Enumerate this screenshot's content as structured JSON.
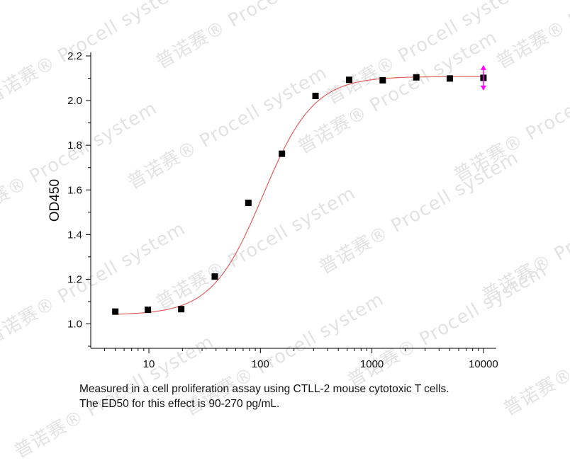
{
  "chart_data": {
    "type": "scatter",
    "title": "",
    "xlabel": "",
    "ylabel": "OD450",
    "x_scale": "log",
    "xlim": [
      4,
      12000
    ],
    "ylim": [
      0.97,
      2.2
    ],
    "x_ticks": [
      {
        "value": 10,
        "label": "10"
      },
      {
        "value": 100,
        "label": "100"
      },
      {
        "value": 1000,
        "label": "1000"
      },
      {
        "value": 10000,
        "label": "10000"
      }
    ],
    "y_ticks": [
      {
        "value": 1.0,
        "label": "1.0"
      },
      {
        "value": 1.2,
        "label": "1.2"
      },
      {
        "value": 1.4,
        "label": "1.4"
      },
      {
        "value": 1.6,
        "label": "1.6"
      },
      {
        "value": 1.8,
        "label": "1.8"
      },
      {
        "value": 2.0,
        "label": "2.0"
      },
      {
        "value": 2.2,
        "label": "2.2"
      }
    ],
    "series": [
      {
        "marker": "square",
        "color": "#000000",
        "points": [
          {
            "x": 5,
            "y": 1.055
          },
          {
            "x": 9.8,
            "y": 1.063
          },
          {
            "x": 19.5,
            "y": 1.066
          },
          {
            "x": 39,
            "y": 1.212
          },
          {
            "x": 78,
            "y": 1.542
          },
          {
            "x": 156,
            "y": 1.762
          },
          {
            "x": 312,
            "y": 2.021
          },
          {
            "x": 625,
            "y": 2.093
          },
          {
            "x": 1250,
            "y": 2.091
          },
          {
            "x": 2500,
            "y": 2.104
          },
          {
            "x": 5000,
            "y": 2.099
          },
          {
            "x": 10000,
            "y": 2.102
          }
        ]
      }
    ],
    "fit_curve": {
      "model": "4-parameter logistic",
      "color": "#e06060",
      "bottom": 1.04,
      "top": 2.108,
      "ec50": 105,
      "hill": 1.9
    },
    "grid": false,
    "legend": "none"
  },
  "caption": {
    "line1": "Measured in a cell proliferation assay using CTLL-2 mouse cytotoxic T cells.",
    "line2": "The ED50 for this effect is 90-270 pg/mL."
  },
  "watermark": {
    "text": "普诺赛® Procell system",
    "color": "#e3e3e3"
  },
  "selection_marker_color": "#ff00ff"
}
